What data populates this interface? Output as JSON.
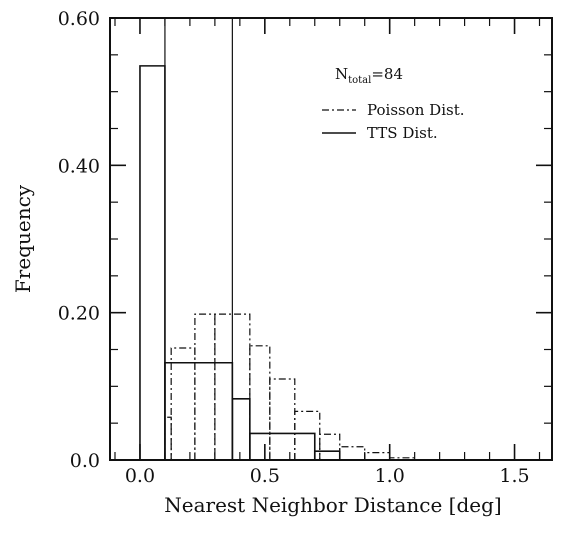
{
  "chart_data": {
    "type": "histogram",
    "title": "",
    "xlabel": "Nearest Neighbor Distance [deg]",
    "ylabel": "Frequency",
    "xlim": [
      -0.12,
      1.65
    ],
    "ylim": [
      0,
      0.6
    ],
    "x_ticks": [
      0.0,
      0.5,
      1.0,
      1.5
    ],
    "x_tick_labels": [
      "0.0",
      "0.5",
      "1.0",
      "1.5"
    ],
    "y_ticks": [
      0.0,
      0.2,
      0.4,
      0.6
    ],
    "y_tick_labels": [
      "0.0",
      "0.20",
      "0.40",
      "0.60"
    ],
    "grid": false,
    "annotation": {
      "n_label": "N",
      "n_subscript": "total",
      "n_value": "=84"
    },
    "reference_lines_x": [
      0.1,
      0.37
    ],
    "legend": {
      "placement": "top-right",
      "entries": [
        {
          "name": "Poisson Dist.",
          "style": "dash-dot"
        },
        {
          "name": "TTS Dist.",
          "style": "solid"
        }
      ]
    },
    "series": [
      {
        "name": "TTS Dist.",
        "style": "solid",
        "bin_edges": [
          0.0,
          0.1,
          0.37,
          0.44,
          0.7,
          0.8,
          1.0
        ],
        "values": [
          0.535,
          0.132,
          0.083,
          0.036,
          0.012,
          0.0
        ]
      },
      {
        "name": "Poisson Dist.",
        "style": "dash-dot",
        "bin_edges": [
          0.1,
          0.125,
          0.22,
          0.3,
          0.44,
          0.52,
          0.62,
          0.72,
          0.8,
          0.9,
          1.0,
          1.1
        ],
        "values": [
          0.058,
          0.152,
          0.198,
          0.198,
          0.155,
          0.11,
          0.066,
          0.035,
          0.018,
          0.01,
          0.003
        ]
      }
    ]
  }
}
